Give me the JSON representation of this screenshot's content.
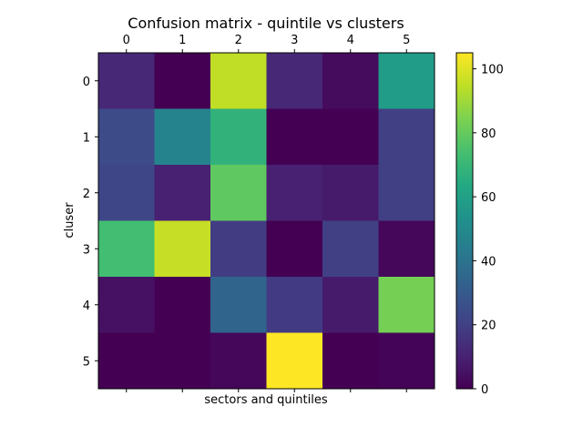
{
  "chart_data": {
    "type": "heatmap",
    "title": "Confusion matrix - quintile vs clusters",
    "xlabel": "sectors and quintiles",
    "ylabel": "cluser",
    "x_tick_position": "top",
    "x_categories": [
      "0",
      "1",
      "2",
      "3",
      "4",
      "5"
    ],
    "y_categories": [
      "0",
      "1",
      "2",
      "3",
      "4",
      "5"
    ],
    "values": [
      [
        12,
        0,
        95,
        12,
        3,
        58
      ],
      [
        24,
        47,
        68,
        0,
        0,
        20
      ],
      [
        22,
        10,
        79,
        10,
        8,
        20
      ],
      [
        73,
        96,
        19,
        0,
        20,
        2
      ],
      [
        5,
        0,
        34,
        18,
        8,
        83
      ],
      [
        0,
        0,
        2,
        105,
        0,
        1
      ]
    ],
    "colorbar": {
      "colormap": "viridis",
      "range": [
        0,
        105
      ],
      "ticks": [
        0,
        20,
        40,
        60,
        80,
        100
      ]
    },
    "grid": false
  }
}
